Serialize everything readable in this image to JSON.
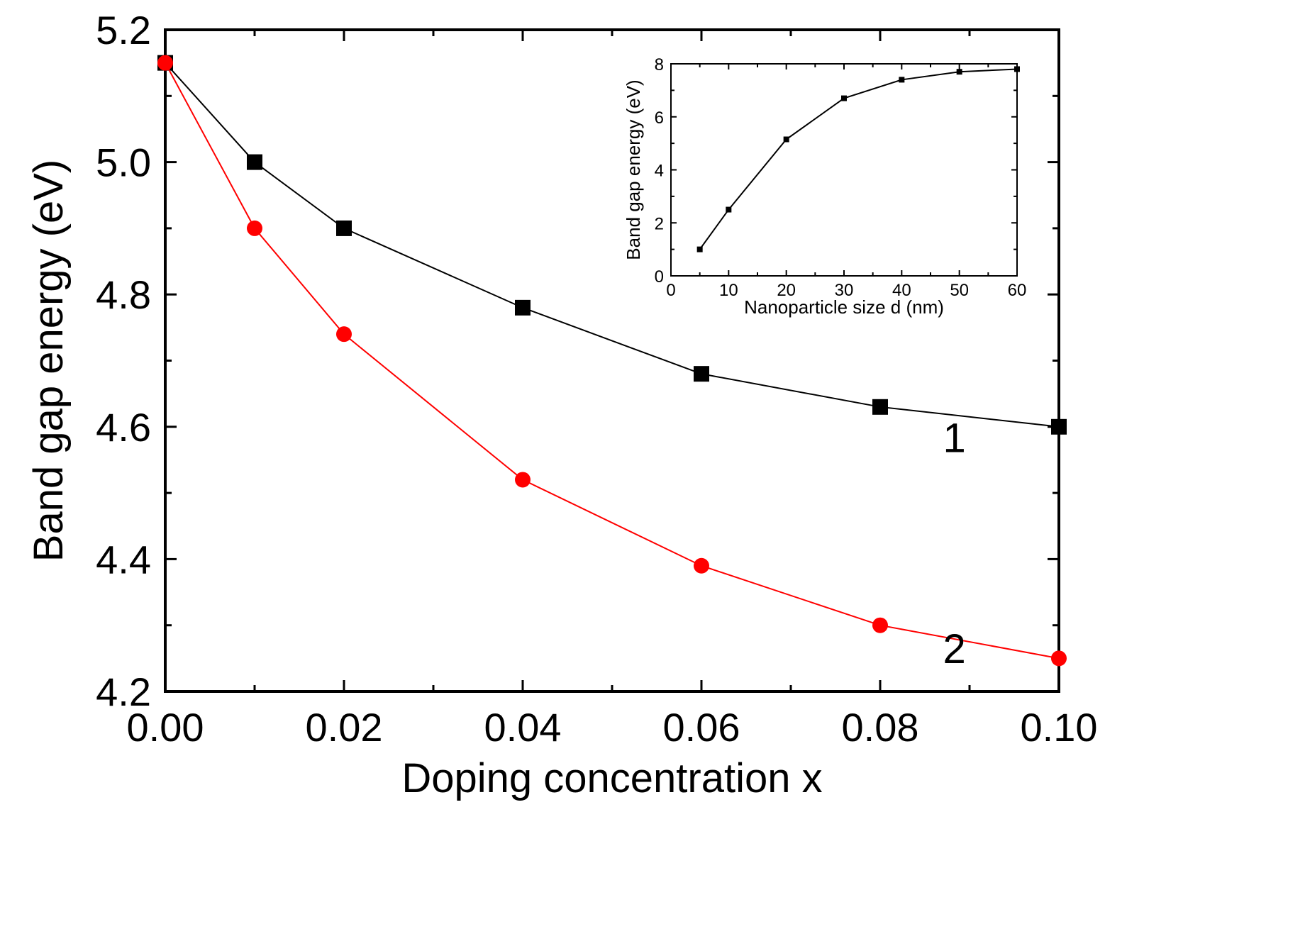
{
  "chart_data": [
    {
      "type": "line",
      "title": "",
      "xlabel": "Doping concentration x",
      "ylabel": "Band gap energy (eV)",
      "xlim": [
        0.0,
        0.1
      ],
      "ylim": [
        4.2,
        5.2
      ],
      "x_ticks": [
        "0.00",
        "0.02",
        "0.04",
        "0.06",
        "0.08",
        "0.10"
      ],
      "y_ticks": [
        "4.2",
        "4.4",
        "4.6",
        "4.8",
        "5.0",
        "5.2"
      ],
      "x_tick_values": [
        0.0,
        0.02,
        0.04,
        0.06,
        0.08,
        0.1
      ],
      "y_tick_values": [
        4.2,
        4.4,
        4.6,
        4.8,
        5.0,
        5.2
      ],
      "x_minor_ticks": [
        0.01,
        0.03,
        0.05,
        0.07,
        0.09
      ],
      "y_minor_ticks": [
        4.3,
        4.5,
        4.7,
        4.9,
        5.1
      ],
      "grid": false,
      "series": [
        {
          "name": "1",
          "color": "#000000",
          "marker": "square",
          "x": [
            0.0,
            0.01,
            0.02,
            0.04,
            0.06,
            0.08,
            0.1
          ],
          "y": [
            5.15,
            5.0,
            4.9,
            4.78,
            4.68,
            4.63,
            4.6
          ]
        },
        {
          "name": "2",
          "color": "#ff0000",
          "marker": "circle",
          "x": [
            0.0,
            0.01,
            0.02,
            0.04,
            0.06,
            0.08,
            0.1
          ],
          "y": [
            5.15,
            4.9,
            4.74,
            4.52,
            4.39,
            4.3,
            4.25
          ]
        }
      ],
      "annotations": [
        {
          "text": "1",
          "x": 0.0883,
          "y": 4.562
        },
        {
          "text": "2",
          "x": 0.0883,
          "y": 4.243
        }
      ]
    },
    {
      "type": "line",
      "title": "",
      "xlabel": "Nanoparticle size d (nm)",
      "ylabel": "Band gap energy (eV)",
      "xlim": [
        0,
        60
      ],
      "ylim": [
        0,
        8
      ],
      "x_ticks": [
        "0",
        "10",
        "20",
        "30",
        "40",
        "50",
        "60"
      ],
      "y_ticks": [
        "0",
        "2",
        "4",
        "6",
        "8"
      ],
      "x_tick_values": [
        0,
        10,
        20,
        30,
        40,
        50,
        60
      ],
      "y_tick_values": [
        0,
        2,
        4,
        6,
        8
      ],
      "x_minor_ticks": [
        5,
        15,
        25,
        35,
        45,
        55
      ],
      "y_minor_ticks": [
        1,
        3,
        5,
        7
      ],
      "grid": false,
      "series": [
        {
          "name": "inset",
          "color": "#000000",
          "marker": "square",
          "x": [
            5,
            10,
            20,
            30,
            40,
            50,
            60
          ],
          "y": [
            1.0,
            2.5,
            5.15,
            6.7,
            7.4,
            7.7,
            7.8
          ]
        }
      ]
    }
  ]
}
